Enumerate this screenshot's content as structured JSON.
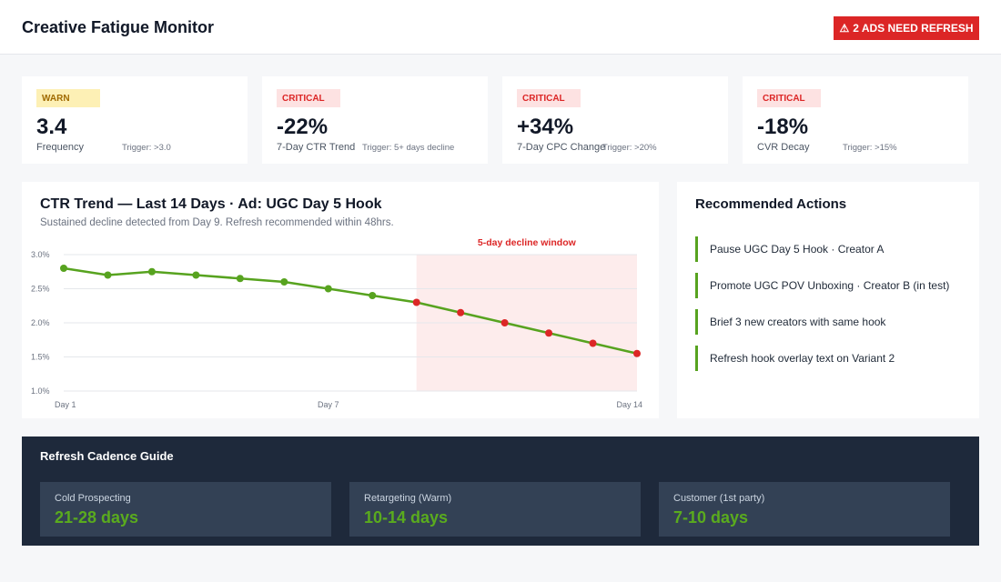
{
  "header": {
    "title": "Creative Fatigue Monitor",
    "alert_label": "2 ADS NEED REFRESH",
    "alert_icon": "warning-triangle-icon",
    "alert_color": "#dc2626"
  },
  "kpis": [
    {
      "status": "WARN",
      "value": "3.4",
      "label": "Frequency",
      "trigger": "Trigger: >3.0"
    },
    {
      "status": "CRITICAL",
      "value": "-22%",
      "label": "7-Day CTR Trend",
      "trigger": "Trigger: 5+ days decline"
    },
    {
      "status": "CRITICAL",
      "value": "+34%",
      "label": "7-Day CPC Change",
      "trigger": "Trigger: >20%"
    },
    {
      "status": "CRITICAL",
      "value": "-18%",
      "label": "CVR Decay",
      "trigger": "Trigger: >15%"
    }
  ],
  "chart": {
    "title": "CTR Trend — Last 14 Days · Ad: UGC Day 5 Hook",
    "subtitle": "Sustained decline detected from Day 9. Refresh recommended within 48hrs.",
    "window_label": "5-day decline window"
  },
  "chart_data": {
    "type": "line",
    "x": [
      1,
      2,
      3,
      4,
      5,
      6,
      7,
      8,
      9,
      10,
      11,
      12,
      13,
      14
    ],
    "series": [
      {
        "values": [
          2.8,
          2.7,
          2.75,
          2.7,
          2.65,
          2.6,
          2.5,
          2.4,
          2.3,
          2.15,
          2.0,
          1.85,
          1.7,
          1.55
        ]
      }
    ],
    "x_tick_labels": [
      "Day 1",
      "Day 7",
      "Day 14"
    ],
    "x_tick_positions": [
      1,
      7,
      14
    ],
    "y_ticks": [
      3.0,
      2.5,
      2.0,
      1.5,
      1.0
    ],
    "y_tick_labels": [
      "3.0%",
      "2.5%",
      "2.0%",
      "1.5%",
      "1.0%"
    ],
    "ylim": [
      1.0,
      3.0
    ],
    "xlim": [
      1,
      14
    ],
    "highlight_start": 9,
    "highlight_end": 14,
    "line_color": "#57a31f",
    "decline_point_color": "#dc2626",
    "grid": true
  },
  "actions": {
    "title": "Recommended Actions",
    "items": [
      "Pause UGC Day 5 Hook · Creator A",
      "Promote UGC POV Unboxing · Creator B (in test)",
      "Brief 3 new creators with same hook",
      "Refresh hook overlay text on Variant 2"
    ]
  },
  "cadence": {
    "title": "Refresh Cadence Guide",
    "items": [
      {
        "label": "Cold Prospecting",
        "value": "21-28 days"
      },
      {
        "label": "Retargeting (Warm)",
        "value": "10-14 days"
      },
      {
        "label": "Customer (1st party)",
        "value": "7-10 days"
      }
    ]
  }
}
